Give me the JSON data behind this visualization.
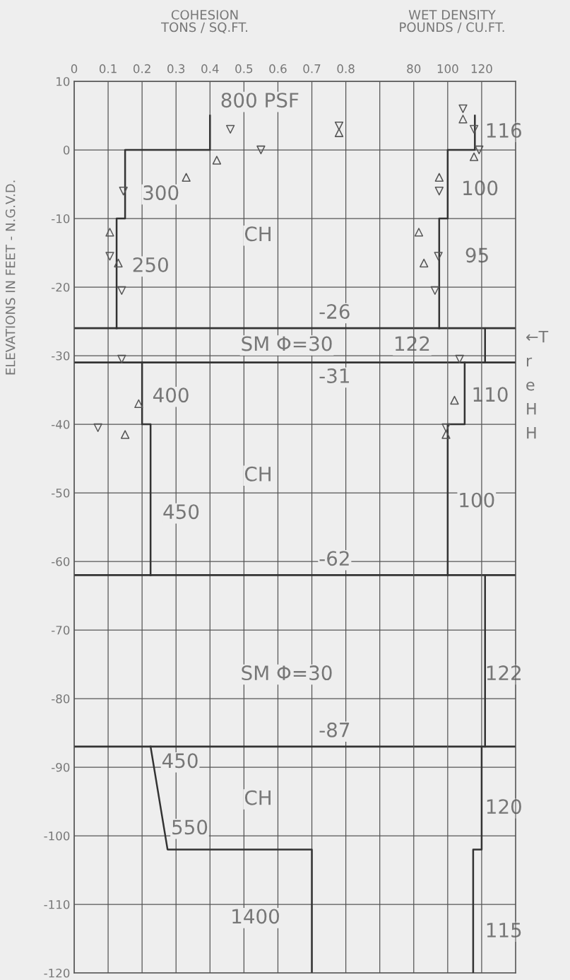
{
  "chart_data": {
    "type": "line",
    "xlabel": "COHESION\nTONS / SQ.FT.",
    "x2label": "WET DENSITY\nPOUNDS / CU.FT.",
    "ylabel": "ELEVATIONS IN FEET - N.G.V.D.",
    "xlim": [
      0,
      1.3
    ],
    "xticks": [
      0,
      0.1,
      0.2,
      0.3,
      0.4,
      0.5,
      0.6,
      0.7,
      0.8,
      {
        "value": 0.9,
        "label": null
      }
    ],
    "x2lim": [
      -120,
      140
    ],
    "x2ticks": [
      80,
      100,
      120
    ],
    "ylim": [
      -120,
      10
    ],
    "yticks": [
      10,
      0,
      -10,
      -20,
      -30,
      -40,
      -50,
      -60,
      -70,
      -80,
      -90,
      -100,
      -110,
      -120
    ],
    "grid": true,
    "series": [
      {
        "color": "#333333",
        "x": [
          0.4,
          0.4,
          0.15,
          0.15,
          0.125,
          0.125
        ],
        "values": [
          5,
          0,
          0,
          -10,
          -10,
          -26
        ]
      },
      {
        "color": "#333333",
        "x": [
          0.2,
          0.2,
          0.225,
          0.225
        ],
        "values": [
          -31,
          -40,
          -40,
          -62
        ]
      },
      {
        "color": "#333333",
        "x": [
          0.225,
          0.275,
          0.7,
          0.7
        ],
        "values": [
          -87,
          -102,
          -102,
          -120
        ]
      },
      {
        "axis": "x2",
        "color": "#333333",
        "x": [
          116,
          116,
          100,
          100,
          95,
          95
        ],
        "values": [
          5,
          0,
          0,
          -10,
          -10,
          -26
        ]
      },
      {
        "axis": "x2",
        "color": "#333333",
        "x": [
          122,
          122
        ],
        "values": [
          -26,
          -31
        ]
      },
      {
        "axis": "x2",
        "color": "#333333",
        "x": [
          110,
          110,
          100,
          100
        ],
        "values": [
          -31,
          -40,
          -40,
          -62
        ]
      },
      {
        "axis": "x2",
        "color": "#333333",
        "x": [
          122,
          122
        ],
        "values": [
          -62,
          -87
        ]
      },
      {
        "axis": "x2",
        "color": "#333333",
        "x": [
          120,
          120,
          115,
          115
        ],
        "values": [
          -87,
          -102,
          -102,
          -120
        ]
      },
      {
        "type": "scatter",
        "marker": "triangle",
        "color": "#555555",
        "x": [
          0.42,
          0.33,
          0.105,
          0.13,
          0.19,
          0.15,
          0.78
        ],
        "values": [
          -1.5,
          -4,
          -12,
          -16.5,
          -37,
          -41.5,
          2.5
        ]
      },
      {
        "type": "scatter",
        "marker": "triangle_down",
        "color": "#555555",
        "x": [
          0.46,
          0.55,
          0.145,
          0.105,
          0.14,
          0.14,
          0.07,
          0.78
        ],
        "values": [
          3,
          0,
          -6,
          -15.5,
          -20.5,
          -30.5,
          -40.5,
          3.5
        ]
      },
      {
        "type": "scatter",
        "axis": "x2",
        "marker": "triangle",
        "color": "#555555",
        "x": [
          109,
          115.5,
          95,
          83,
          86,
          104,
          99
        ],
        "values": [
          4.5,
          -1,
          -4,
          -12,
          -16.5,
          -36.5,
          -41.5
        ]
      },
      {
        "type": "scatter",
        "axis": "x2",
        "marker": "triangle_down",
        "color": "#555555",
        "x": [
          109,
          115.5,
          118.5,
          95,
          94.5,
          92.5,
          107,
          99
        ],
        "values": [
          6,
          3,
          0,
          -6,
          -15.5,
          -20.5,
          -30.5,
          -40.5
        ]
      }
    ],
    "ref_lines": [
      {
        "axis": "y",
        "value": -26,
        "label": "-26",
        "color": "#333333"
      },
      {
        "axis": "y",
        "value": -31,
        "label": "-31",
        "color": "#333333"
      },
      {
        "axis": "y",
        "value": -62,
        "label": "-62",
        "color": "#333333"
      },
      {
        "axis": "y",
        "value": -87,
        "label": "-87",
        "color": "#333333"
      }
    ],
    "annotations": [
      "800 PSF",
      "300",
      "250",
      "CH",
      "SM Φ=30",
      "122",
      "400",
      "CH",
      "450",
      "SM Φ=30",
      "450",
      "CH",
      "550",
      "1400",
      "116",
      "100",
      "95",
      "110",
      "100",
      "122",
      "120",
      "115",
      "←T",
      "r",
      "e",
      "H",
      "H"
    ]
  }
}
